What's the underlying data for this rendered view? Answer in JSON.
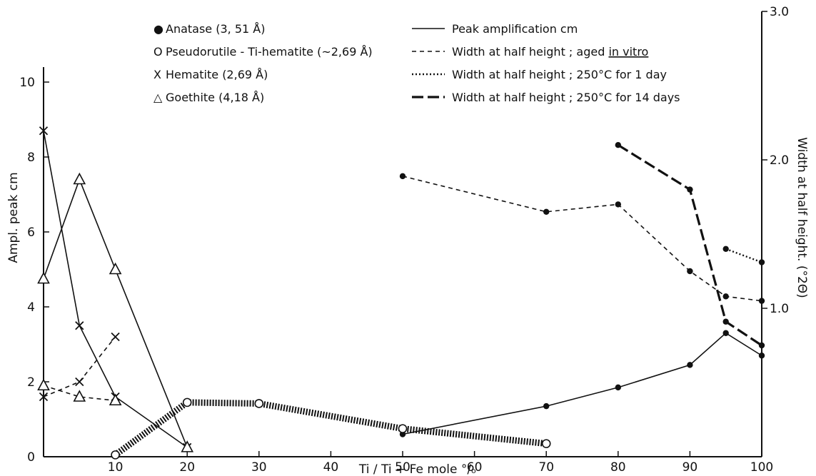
{
  "chart_data": {
    "type": "line",
    "xlabel": "Ti / Ti + Fe mole °/ₒ",
    "ylabel_left": "Ampl. peak cm",
    "ylabel_right": "Width at half height. (°2Θ)",
    "xlim": [
      0,
      100
    ],
    "ylim_left": [
      0,
      10.4
    ],
    "ylim_right": [
      0,
      3.0
    ],
    "x_ticks": [
      10,
      20,
      30,
      40,
      50,
      60,
      70,
      80,
      90,
      100
    ],
    "y_ticks_left": [
      0,
      2,
      4,
      6,
      8,
      10
    ],
    "y_ticks_right": [
      1.0,
      2.0,
      3.0
    ],
    "x_tick_labels": [
      "10",
      "20",
      "30",
      "40",
      "50",
      "60",
      "70",
      "80",
      "90",
      "100"
    ],
    "y_tick_labels_left": [
      "0",
      "2",
      "4",
      "6",
      "8",
      "10"
    ],
    "y_tick_labels_right": [
      "1.0",
      "2.0",
      "3.0"
    ],
    "legend_minerals": [
      {
        "symbol": "●",
        "text": "Anatase   (3, 51 Å)"
      },
      {
        "symbol": "O",
        "text": "Pseudorutile - Ti-hematite (~2,69 Å)"
      },
      {
        "symbol": "X",
        "text": "Hematite  (2,69 Å)"
      },
      {
        "symbol": "△",
        "text": "Goethite  (4,18 Å)"
      }
    ],
    "legend_lines": [
      {
        "style": "solid",
        "text": "Peak amplification  cm"
      },
      {
        "style": "dashed",
        "text": "Width at half height ; aged ",
        "underlined": "in vitro"
      },
      {
        "style": "dotted",
        "text": "Width at half height ;  250°C for 1 day"
      },
      {
        "style": "longdash",
        "text": "Width at half height ; 250°C for 14 days"
      }
    ],
    "series": [
      {
        "mineral": "Anatase",
        "marker": "dot",
        "line": "solid",
        "axis": "left",
        "x": [
          50,
          70,
          80,
          90,
          95,
          100
        ],
        "y": [
          0.6,
          1.35,
          1.85,
          2.45,
          3.3,
          2.7
        ]
      },
      {
        "mineral": "Anatase",
        "marker": "dot",
        "line": "dashed",
        "axis": "right",
        "x": [
          50,
          70,
          80,
          90,
          95,
          100
        ],
        "y": [
          1.89,
          1.65,
          1.7,
          1.25,
          1.08,
          1.05
        ]
      },
      {
        "mineral": "Anatase",
        "marker": "dot",
        "line": "dotted",
        "axis": "right",
        "x": [
          95,
          100
        ],
        "y": [
          1.4,
          1.31
        ]
      },
      {
        "mineral": "Anatase",
        "marker": "dot",
        "line": "longdash",
        "axis": "right",
        "x": [
          80,
          90,
          95,
          100
        ],
        "y": [
          2.1,
          1.8,
          0.91,
          0.75
        ]
      },
      {
        "mineral": "Pseudorutile - Ti-hematite",
        "marker": "circle",
        "line": "hatched",
        "axis": "left",
        "x": [
          10,
          20,
          30,
          50,
          70
        ],
        "y": [
          0.05,
          1.45,
          1.42,
          0.75,
          0.35
        ]
      },
      {
        "mineral": "Hematite",
        "marker": "x",
        "line": "solid",
        "axis": "left",
        "x": [
          0,
          5,
          10,
          20
        ],
        "y": [
          8.7,
          3.5,
          1.6,
          0.25
        ]
      },
      {
        "mineral": "Hematite",
        "marker": "x",
        "line": "dashed",
        "axis": "left",
        "x": [
          0,
          5,
          10
        ],
        "y": [
          1.6,
          2.0,
          3.2
        ]
      },
      {
        "mineral": "Goethite",
        "marker": "triangle",
        "line": "solid",
        "axis": "left",
        "x": [
          0,
          5,
          10,
          20
        ],
        "y": [
          4.75,
          7.4,
          5.0,
          0.25
        ]
      },
      {
        "mineral": "Goethite",
        "marker": "triangle",
        "line": "dashed",
        "axis": "left",
        "x": [
          0,
          5,
          10
        ],
        "y": [
          1.9,
          1.6,
          1.5
        ]
      }
    ]
  }
}
